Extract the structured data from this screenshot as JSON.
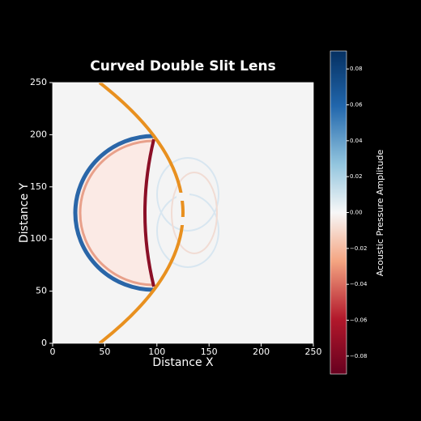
{
  "chart_data": {
    "type": "image",
    "title": "Curved Double Slit Lens",
    "xlabel": "Distance X",
    "ylabel": "Distance Y",
    "xlim": [
      0,
      250
    ],
    "ylim": [
      0,
      250
    ],
    "xticks": [
      0,
      50,
      100,
      150,
      200,
      250
    ],
    "yticks": [
      0,
      50,
      100,
      150,
      200,
      250
    ],
    "colorbar": {
      "label": "Acoustic Pressure Amplitude",
      "lim": [
        -0.09,
        0.09
      ],
      "colormap": "RdBu",
      "ticks": [
        0.08,
        0.06,
        0.04,
        0.02,
        {
          "value": 0,
          "label": "0.00"
        },
        {
          "value": -0.02,
          "label": "−0.02"
        },
        {
          "value": -0.04,
          "label": "−0.04"
        },
        {
          "value": -0.06,
          "label": "−0.06"
        },
        {
          "value": -0.08,
          "label": "−0.08"
        }
      ]
    }
  }
}
